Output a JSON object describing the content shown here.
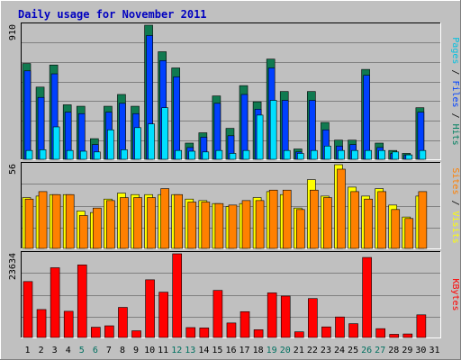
{
  "title": "Daily usage for November 2011",
  "colors": {
    "background": "#c0c0c0",
    "panel": "#c0c0c0",
    "grid": "#808080",
    "title": "#0000c0",
    "hits": "#008000",
    "hits_fill": "#107a50",
    "files": "#0040ff",
    "pages": "#00e0ff",
    "visits": "#ffff00",
    "sites": "#ff8000",
    "kbytes": "#ff0000",
    "weekend": "#007060"
  },
  "chart_data": [
    {
      "type": "bar",
      "name": "hits-files-pages",
      "ymax_label": "910",
      "right_labels": [
        {
          "text": "Pages",
          "color": "#00c0e0"
        },
        {
          "text": " / ",
          "color": "#000000"
        },
        {
          "text": "Files",
          "color": "#0040ff"
        },
        {
          "text": " / ",
          "color": "#000000"
        },
        {
          "text": "Hits",
          "color": "#008060"
        }
      ],
      "ylim": [
        0,
        910
      ],
      "categories": [
        "1",
        "2",
        "3",
        "4",
        "5",
        "6",
        "7",
        "8",
        "9",
        "10",
        "11",
        "12",
        "13",
        "14",
        "15",
        "16",
        "17",
        "18",
        "19",
        "20",
        "21",
        "22",
        "23",
        "24",
        "25",
        "26",
        "27",
        "28",
        "29",
        "30",
        "31"
      ],
      "series": [
        {
          "name": "Hits",
          "values": [
            650,
            490,
            640,
            370,
            360,
            140,
            360,
            440,
            360,
            910,
            730,
            620,
            110,
            180,
            430,
            210,
            500,
            390,
            680,
            460,
            70,
            460,
            250,
            130,
            130,
            610,
            110,
            60,
            40,
            350,
            0
          ]
        },
        {
          "name": "Files",
          "values": [
            600,
            420,
            580,
            320,
            310,
            100,
            320,
            380,
            310,
            840,
            670,
            560,
            80,
            150,
            380,
            160,
            440,
            340,
            620,
            400,
            50,
            400,
            200,
            90,
            100,
            570,
            80,
            40,
            30,
            320,
            0
          ]
        },
        {
          "name": "Pages",
          "values": [
            60,
            65,
            220,
            60,
            55,
            50,
            200,
            65,
            215,
            240,
            350,
            60,
            55,
            50,
            60,
            40,
            60,
            300,
            400,
            60,
            40,
            60,
            90,
            60,
            60,
            60,
            60,
            50,
            30,
            60,
            0
          ]
        }
      ]
    },
    {
      "type": "bar",
      "name": "visits-sites",
      "ymax_label": "56",
      "right_labels": [
        {
          "text": "Sites",
          "color": "#ff8000"
        },
        {
          "text": " / ",
          "color": "#000000"
        },
        {
          "text": "Visits",
          "color": "#ffff00"
        }
      ],
      "ylim": [
        0,
        56
      ],
      "series": [
        {
          "name": "Visits",
          "values": [
            34,
            35,
            36,
            36,
            25,
            24,
            33,
            37,
            36,
            36,
            36,
            36,
            33,
            32,
            30,
            28,
            30,
            34,
            38,
            36,
            27,
            46,
            35,
            56,
            41,
            35,
            40,
            29,
            21,
            35,
            0
          ]
        },
        {
          "name": "Sites",
          "values": [
            33,
            38,
            36,
            36,
            22,
            27,
            32,
            34,
            34,
            34,
            40,
            36,
            31,
            31,
            30,
            29,
            32,
            32,
            39,
            39,
            26,
            39,
            34,
            53,
            38,
            33,
            38,
            26,
            20,
            38,
            0
          ]
        }
      ]
    },
    {
      "type": "bar",
      "name": "kbytes",
      "ymax_label": "23634",
      "right_labels": [
        {
          "text": "KBytes",
          "color": "#ff0000"
        }
      ],
      "ylim": [
        0,
        23634
      ],
      "series": [
        {
          "name": "KBytes",
          "values": [
            15800,
            7900,
            19700,
            7400,
            20500,
            2900,
            3300,
            8500,
            1900,
            16300,
            12800,
            23634,
            2800,
            2700,
            13300,
            4100,
            7300,
            2200,
            12600,
            11700,
            1600,
            11000,
            3000,
            5800,
            3900,
            22600,
            2500,
            900,
            1000,
            6400,
            0
          ]
        }
      ]
    }
  ],
  "weekend_days": [
    5,
    6,
    12,
    13,
    19,
    20,
    26,
    27
  ]
}
